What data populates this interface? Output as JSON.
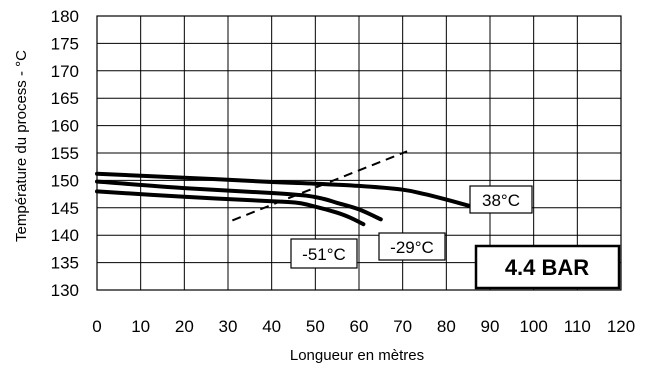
{
  "chart_data": {
    "type": "line",
    "xlabel": "Longueur en mètres",
    "ylabel": "Température du process - °C",
    "xlim": [
      0,
      120
    ],
    "ylim": [
      130,
      180
    ],
    "x_ticks": [
      0,
      10,
      20,
      30,
      40,
      50,
      60,
      70,
      80,
      90,
      100,
      110,
      120
    ],
    "y_ticks": [
      130,
      135,
      140,
      145,
      150,
      155,
      160,
      165,
      170,
      175,
      180
    ],
    "grid": true,
    "badge": "4.4 BAR",
    "series": [
      {
        "name": "38°C",
        "x": [
          0,
          20,
          40,
          50,
          60,
          70,
          75,
          80,
          85
        ],
        "y": [
          151.2,
          150.5,
          149.7,
          149.4,
          149.0,
          148.3,
          147.5,
          146.5,
          145.4
        ]
      },
      {
        "name": "-29°C",
        "x": [
          0,
          20,
          40,
          48,
          52,
          55,
          60,
          65
        ],
        "y": [
          149.8,
          148.6,
          147.7,
          147.2,
          146.6,
          145.9,
          144.7,
          142.9
        ]
      },
      {
        "name": "-51°C",
        "x": [
          0,
          20,
          40,
          46,
          50,
          55,
          58,
          61
        ],
        "y": [
          148.0,
          147.0,
          146.2,
          145.9,
          145.2,
          144.1,
          143.2,
          142.0
        ]
      }
    ],
    "reference_line": {
      "style": "dashed",
      "x": [
        31,
        71
      ],
      "y": [
        142.7,
        155.3
      ]
    },
    "annotations": [
      "38°C",
      "-29°C",
      "-51°C"
    ]
  }
}
